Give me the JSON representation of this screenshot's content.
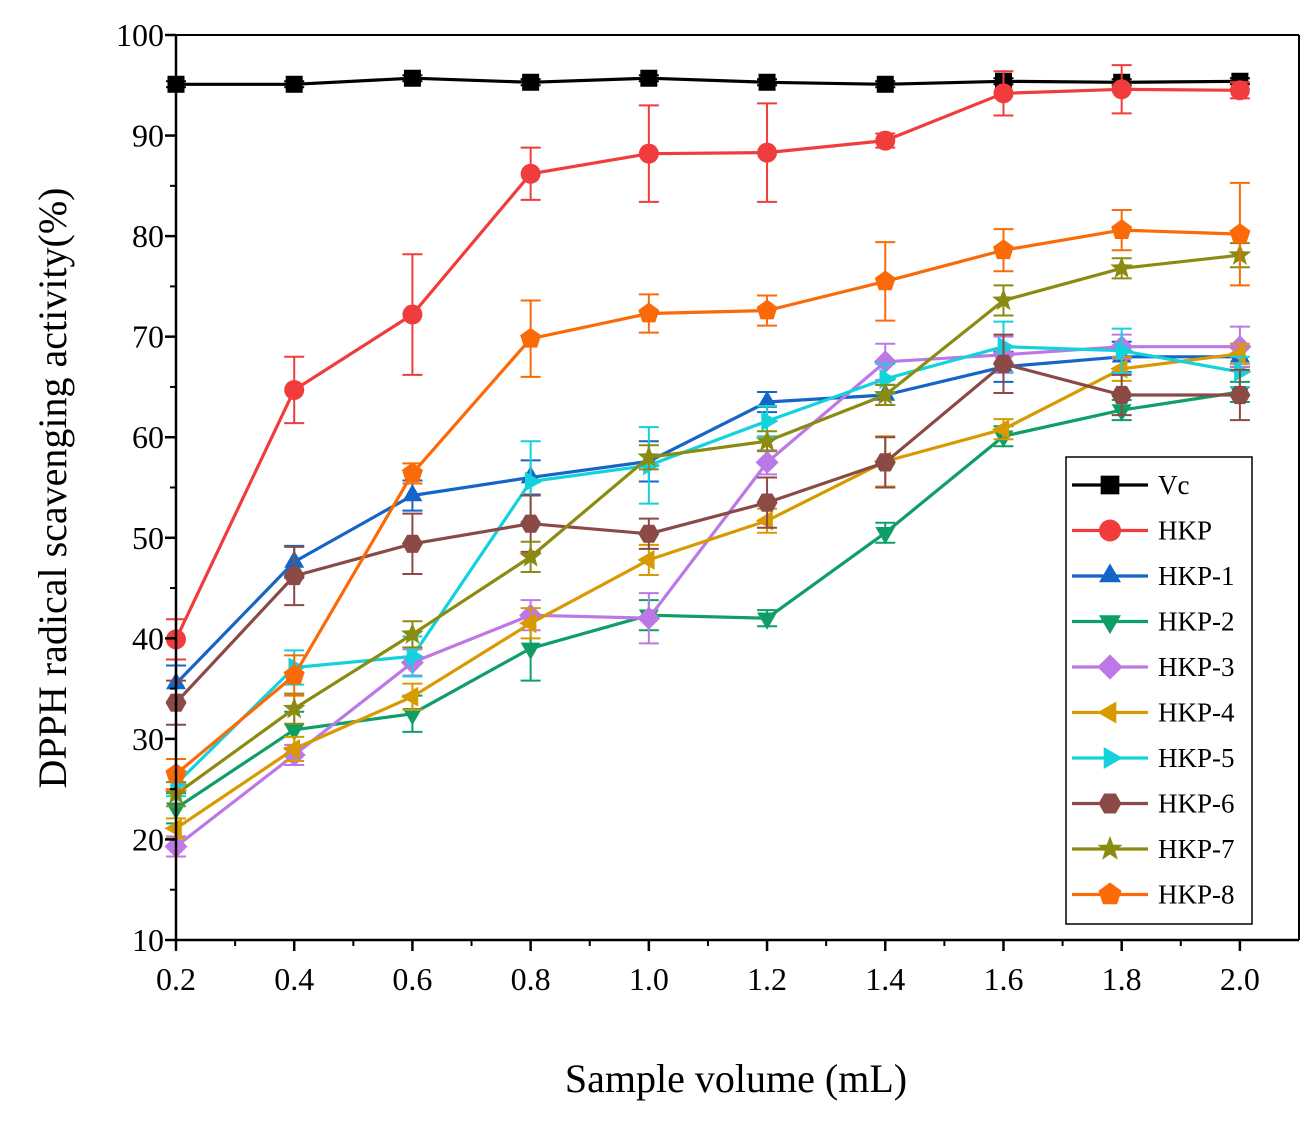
{
  "chart_data": {
    "type": "line",
    "title": "",
    "xlabel": "Sample volume (mL)",
    "ylabel": "DPPH radical scavenging activity(%)",
    "xlim": [
      0.2,
      2.1
    ],
    "ylim": [
      10,
      100
    ],
    "x_ticks": [
      0.2,
      0.4,
      0.6,
      0.8,
      1.0,
      1.2,
      1.4,
      1.6,
      1.8,
      2.0
    ],
    "x_tick_labels": [
      "0.2",
      "0.4",
      "0.6",
      "0.8",
      "1.0",
      "1.2",
      "1.4",
      "1.6",
      "1.8",
      "2.0"
    ],
    "y_ticks": [
      10,
      20,
      30,
      40,
      50,
      60,
      70,
      80,
      90,
      100
    ],
    "y_tick_labels": [
      "10",
      "20",
      "30",
      "40",
      "50",
      "60",
      "70",
      "80",
      "90",
      "100"
    ],
    "grid": false,
    "legend_position": "right",
    "x": [
      0.2,
      0.4,
      0.6,
      0.8,
      1.0,
      1.2,
      1.4,
      1.6,
      1.8,
      2.0
    ],
    "series": [
      {
        "name": "Vc",
        "color": "#000000",
        "marker": "square",
        "values": [
          95.1,
          95.1,
          95.7,
          95.3,
          95.7,
          95.3,
          95.1,
          95.4,
          95.3,
          95.4
        ],
        "errors": [
          0.3,
          0.3,
          0.3,
          0.3,
          0.3,
          0.3,
          0.3,
          0.3,
          0.3,
          0.3
        ]
      },
      {
        "name": "HKP",
        "color": "#f03c3c",
        "marker": "circle",
        "values": [
          39.9,
          64.7,
          72.2,
          86.2,
          88.2,
          88.3,
          89.5,
          94.2,
          94.6,
          94.5
        ],
        "errors": [
          2.0,
          3.3,
          6.0,
          2.6,
          4.8,
          4.9,
          0.7,
          2.2,
          2.4,
          0.8
        ]
      },
      {
        "name": "HKP-1",
        "color": "#1565c8",
        "marker": "triangle-up",
        "values": [
          35.5,
          47.6,
          54.2,
          56.0,
          57.6,
          63.5,
          64.2,
          67.0,
          68.0,
          68.0
        ],
        "errors": [
          1.8,
          1.6,
          1.5,
          1.7,
          2.0,
          1.0,
          1.0,
          1.5,
          1.5,
          1.0
        ]
      },
      {
        "name": "HKP-2",
        "color": "#0f9e66",
        "marker": "triangle-down",
        "values": [
          23.1,
          30.9,
          32.5,
          39.0,
          42.3,
          42.0,
          50.5,
          60.1,
          62.7,
          64.5
        ],
        "errors": [
          1.5,
          1.8,
          1.8,
          3.2,
          1.5,
          0.8,
          1.0,
          1.0,
          1.0,
          1.0
        ]
      },
      {
        "name": "HKP-3",
        "color": "#bc78e6",
        "marker": "diamond",
        "values": [
          19.3,
          28.4,
          37.6,
          42.3,
          42.0,
          57.5,
          67.5,
          68.2,
          69.0,
          69.0
        ],
        "errors": [
          1.0,
          1.0,
          1.3,
          1.5,
          2.5,
          1.2,
          1.8,
          1.8,
          1.2,
          2.0
        ]
      },
      {
        "name": "HKP-4",
        "color": "#d89a00",
        "marker": "triangle-left",
        "values": [
          21.1,
          29.0,
          34.2,
          41.5,
          47.8,
          51.7,
          57.6,
          60.8,
          66.8,
          68.3
        ],
        "errors": [
          1.0,
          1.2,
          1.3,
          1.5,
          1.5,
          1.2,
          2.5,
          1.0,
          1.2,
          1.0
        ]
      },
      {
        "name": "HKP-5",
        "color": "#14d2dc",
        "marker": "triangle-right",
        "values": [
          25.5,
          37.1,
          38.2,
          55.6,
          57.2,
          61.6,
          65.8,
          69.0,
          68.6,
          66.5
        ],
        "errors": [
          1.2,
          1.7,
          2.0,
          4.0,
          3.8,
          1.5,
          1.5,
          2.5,
          2.2,
          1.5
        ]
      },
      {
        "name": "HKP-6",
        "color": "#8b4a46",
        "marker": "hexagon",
        "values": [
          33.6,
          46.2,
          49.4,
          51.4,
          50.4,
          53.5,
          57.5,
          67.3,
          64.2,
          64.2
        ],
        "errors": [
          2.2,
          2.9,
          3.0,
          2.8,
          1.5,
          2.5,
          2.5,
          2.9,
          2.0,
          2.5
        ]
      },
      {
        "name": "HKP-7",
        "color": "#8b8b12",
        "marker": "star",
        "values": [
          24.5,
          33.0,
          40.4,
          48.1,
          58.0,
          59.6,
          64.2,
          73.6,
          76.8,
          78.1
        ],
        "errors": [
          1.2,
          1.5,
          1.3,
          1.5,
          1.2,
          1.0,
          1.0,
          1.5,
          1.0,
          1.2
        ]
      },
      {
        "name": "HKP-8",
        "color": "#fb6a08",
        "marker": "pentagon",
        "values": [
          26.5,
          36.3,
          56.4,
          69.8,
          72.3,
          72.6,
          75.5,
          78.6,
          80.6,
          80.2
        ],
        "errors": [
          1.5,
          2.0,
          1.0,
          3.8,
          1.9,
          1.5,
          3.9,
          2.1,
          2.0,
          5.1
        ]
      }
    ]
  }
}
